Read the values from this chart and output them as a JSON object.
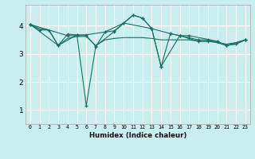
{
  "xlabel": "Humidex (Indice chaleur)",
  "bg_color": "#c8eeee",
  "grid_color": "#ffffff",
  "line_color": "#1a7060",
  "xlim": [
    -0.5,
    23.5
  ],
  "ylim": [
    0.5,
    4.75
  ],
  "yticks": [
    1,
    2,
    3,
    4
  ],
  "xticks": [
    0,
    1,
    2,
    3,
    4,
    5,
    6,
    7,
    8,
    9,
    10,
    11,
    12,
    13,
    14,
    15,
    16,
    17,
    18,
    19,
    20,
    21,
    22,
    23
  ],
  "series": [
    {
      "x": [
        0,
        1,
        2,
        3,
        4,
        5,
        6,
        7,
        8,
        9,
        10,
        11,
        12,
        13,
        14,
        15,
        16,
        17,
        18,
        19,
        20,
        21,
        22,
        23
      ],
      "y": [
        4.05,
        3.85,
        3.85,
        3.3,
        3.7,
        3.68,
        1.15,
        3.25,
        3.78,
        3.82,
        4.1,
        4.38,
        4.28,
        3.9,
        2.55,
        3.72,
        3.65,
        3.55,
        3.45,
        3.45,
        3.45,
        3.3,
        3.35,
        3.5
      ],
      "marker": true
    },
    {
      "x": [
        0,
        1,
        2,
        3,
        4,
        5,
        6,
        7,
        8,
        9,
        10,
        11,
        12,
        13,
        14,
        15,
        16,
        17,
        18,
        19,
        20,
        21,
        22,
        23
      ],
      "y": [
        4.05,
        3.9,
        3.85,
        3.3,
        3.55,
        3.62,
        3.62,
        3.3,
        3.5,
        3.55,
        3.58,
        3.58,
        3.58,
        3.55,
        3.5,
        3.5,
        3.5,
        3.5,
        3.45,
        3.45,
        3.4,
        3.35,
        3.4,
        3.5
      ],
      "marker": false
    },
    {
      "x": [
        0,
        4,
        6,
        7,
        9,
        11,
        12,
        13,
        15,
        16,
        18,
        19,
        21,
        22,
        23
      ],
      "y": [
        4.05,
        3.65,
        3.65,
        3.28,
        3.8,
        4.38,
        4.28,
        3.9,
        3.72,
        3.65,
        3.5,
        3.5,
        3.3,
        3.35,
        3.5
      ],
      "marker": true
    },
    {
      "x": [
        0,
        3,
        5,
        6,
        8,
        10,
        13,
        14,
        16,
        17,
        20,
        21,
        23
      ],
      "y": [
        4.05,
        3.3,
        3.68,
        3.68,
        3.78,
        4.1,
        3.9,
        2.55,
        3.65,
        3.65,
        3.45,
        3.3,
        3.5
      ],
      "marker": true
    }
  ]
}
